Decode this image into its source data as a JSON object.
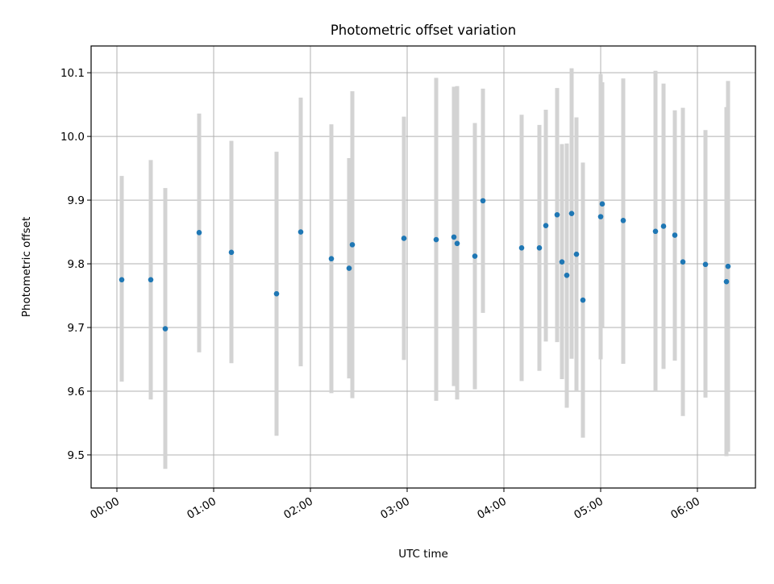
{
  "chart_data": {
    "type": "scatter",
    "title": "Photometric offset variation",
    "xlabel": "UTC time",
    "ylabel": "Photometric offset",
    "x_tick_labels": [
      "00:00",
      "01:00",
      "02:00",
      "03:00",
      "04:00",
      "05:00",
      "06:00"
    ],
    "y_tick_labels": [
      "9.5",
      "9.6",
      "9.7",
      "9.8",
      "9.9",
      "10.0",
      "10.1"
    ],
    "xlim": [
      "-00:16",
      "06:36"
    ],
    "ylim": [
      9.448,
      10.142
    ],
    "grid": true,
    "point_color": "#1f77b4",
    "errorbar_color": "#d3d3d3",
    "points": [
      {
        "x": "00:03",
        "y": 9.775,
        "ylow": 9.615,
        "yhigh": 9.938
      },
      {
        "x": "00:21",
        "y": 9.775,
        "ylow": 9.587,
        "yhigh": 9.963
      },
      {
        "x": "00:30",
        "y": 9.698,
        "ylow": 9.478,
        "yhigh": 9.919
      },
      {
        "x": "00:51",
        "y": 9.849,
        "ylow": 9.661,
        "yhigh": 10.036
      },
      {
        "x": "01:11",
        "y": 9.818,
        "ylow": 9.644,
        "yhigh": 9.993
      },
      {
        "x": "01:39",
        "y": 9.753,
        "ylow": 9.53,
        "yhigh": 9.976
      },
      {
        "x": "01:54",
        "y": 9.85,
        "ylow": 9.639,
        "yhigh": 10.061
      },
      {
        "x": "02:13",
        "y": 9.808,
        "ylow": 9.597,
        "yhigh": 10.019
      },
      {
        "x": "02:24",
        "y": 9.793,
        "ylow": 9.62,
        "yhigh": 9.966
      },
      {
        "x": "02:26",
        "y": 9.83,
        "ylow": 9.589,
        "yhigh": 10.071
      },
      {
        "x": "02:58",
        "y": 9.84,
        "ylow": 9.649,
        "yhigh": 10.031
      },
      {
        "x": "03:18",
        "y": 9.838,
        "ylow": 9.585,
        "yhigh": 10.092
      },
      {
        "x": "03:29",
        "y": 9.842,
        "ylow": 9.608,
        "yhigh": 10.078
      },
      {
        "x": "03:31",
        "y": 9.832,
        "ylow": 9.587,
        "yhigh": 10.079
      },
      {
        "x": "03:42",
        "y": 9.812,
        "ylow": 9.603,
        "yhigh": 10.021
      },
      {
        "x": "03:47",
        "y": 9.899,
        "ylow": 9.723,
        "yhigh": 10.075
      },
      {
        "x": "04:11",
        "y": 9.825,
        "ylow": 9.616,
        "yhigh": 10.034
      },
      {
        "x": "04:22",
        "y": 9.825,
        "ylow": 9.632,
        "yhigh": 10.018
      },
      {
        "x": "04:26",
        "y": 9.86,
        "ylow": 9.678,
        "yhigh": 10.042
      },
      {
        "x": "04:33",
        "y": 9.877,
        "ylow": 9.677,
        "yhigh": 10.076
      },
      {
        "x": "04:36",
        "y": 9.803,
        "ylow": 9.619,
        "yhigh": 9.988
      },
      {
        "x": "04:39",
        "y": 9.782,
        "ylow": 9.574,
        "yhigh": 9.989
      },
      {
        "x": "04:42",
        "y": 9.879,
        "ylow": 9.651,
        "yhigh": 10.107
      },
      {
        "x": "04:45",
        "y": 9.815,
        "ylow": 9.6,
        "yhigh": 10.03
      },
      {
        "x": "04:49",
        "y": 9.743,
        "ylow": 9.527,
        "yhigh": 9.959
      },
      {
        "x": "05:00",
        "y": 9.874,
        "ylow": 9.65,
        "yhigh": 10.098
      },
      {
        "x": "05:01",
        "y": 9.894,
        "ylow": 9.701,
        "yhigh": 10.085
      },
      {
        "x": "05:14",
        "y": 9.868,
        "ylow": 9.643,
        "yhigh": 10.091
      },
      {
        "x": "05:34",
        "y": 9.851,
        "ylow": 9.6,
        "yhigh": 10.103
      },
      {
        "x": "05:39",
        "y": 9.859,
        "ylow": 9.635,
        "yhigh": 10.083
      },
      {
        "x": "05:46",
        "y": 9.845,
        "ylow": 9.648,
        "yhigh": 10.041
      },
      {
        "x": "05:51",
        "y": 9.803,
        "ylow": 9.561,
        "yhigh": 10.045
      },
      {
        "x": "06:05",
        "y": 9.799,
        "ylow": 9.59,
        "yhigh": 10.01
      },
      {
        "x": "06:18",
        "y": 9.772,
        "ylow": 9.498,
        "yhigh": 10.046
      },
      {
        "x": "06:19",
        "y": 9.796,
        "ylow": 9.505,
        "yhigh": 10.087
      }
    ]
  }
}
